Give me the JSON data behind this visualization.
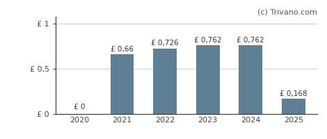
{
  "categories": [
    "2020",
    "2021",
    "2022",
    "2023",
    "2024",
    "2025"
  ],
  "values": [
    0,
    0.66,
    0.726,
    0.762,
    0.762,
    0.168
  ],
  "labels": [
    "£ 0",
    "£ 0,66",
    "£ 0,726",
    "£ 0,762",
    "£ 0,762",
    "£ 0,168"
  ],
  "bar_color": "#5f7f95",
  "yticks": [
    0,
    0.5,
    1
  ],
  "ytick_labels": [
    "£ 0",
    "£ 0,5",
    "£ 1"
  ],
  "ylim": [
    0,
    1.08
  ],
  "watermark": "(c) Trivano.com",
  "background_color": "#ffffff",
  "label_fontsize": 7.5,
  "tick_fontsize": 8,
  "watermark_fontsize": 8,
  "label_offsets": [
    0.04,
    0.02,
    0.02,
    0.02,
    0.02,
    0.02
  ]
}
